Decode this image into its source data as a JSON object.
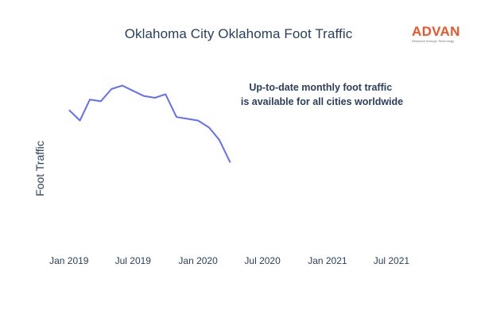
{
  "chart_data": {
    "type": "line",
    "title": "Oklahoma City Oklahoma Foot Traffic",
    "xlabel": "",
    "ylabel": "Foot Traffic",
    "yticks_visible": false,
    "xlim": [
      "2018-12-01",
      "2021-09-01"
    ],
    "ylim": [
      0,
      100
    ],
    "x_ticks": [
      {
        "date": "2019-01-01",
        "label": "Jan 2019"
      },
      {
        "date": "2019-07-01",
        "label": "Jul 2019"
      },
      {
        "date": "2020-01-01",
        "label": "Jan 2020"
      },
      {
        "date": "2020-07-01",
        "label": "Jul 2020"
      },
      {
        "date": "2021-01-01",
        "label": "Jan 2021"
      },
      {
        "date": "2021-07-01",
        "label": "Jul 2021"
      }
    ],
    "series": [
      {
        "color": "#636efa",
        "x": [
          "2019-01-01",
          "2019-02-01",
          "2019-03-01",
          "2019-04-01",
          "2019-05-01",
          "2019-06-01",
          "2019-07-01",
          "2019-08-01",
          "2019-09-01",
          "2019-10-01",
          "2019-11-01",
          "2019-12-01",
          "2020-01-01",
          "2020-02-01",
          "2020-03-01",
          "2020-04-01"
        ],
        "y": [
          78,
          72,
          84,
          83,
          90,
          92,
          89,
          86,
          85,
          87,
          74,
          73,
          72,
          68,
          61,
          48
        ]
      }
    ],
    "annotation": "Up-to-date monthly foot traffic\nis available for all cities worldwide",
    "grid": false,
    "legend": "none"
  },
  "brand": {
    "name": "ADVAN",
    "tagline": "Research through Technology",
    "color": "#e8562a"
  }
}
